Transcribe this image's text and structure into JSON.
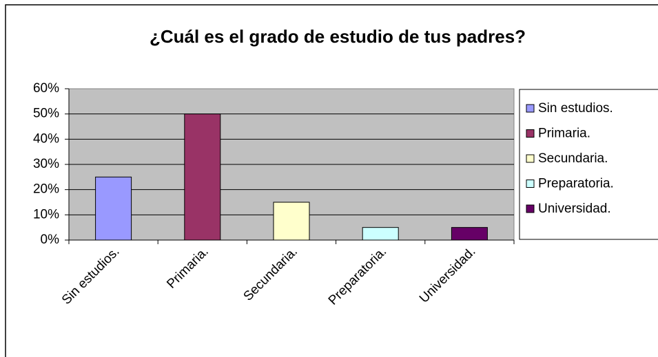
{
  "chart_data": {
    "type": "bar",
    "title": "¿Cuál es el grado de estudio de tus padres?",
    "categories": [
      "Sin estudios.",
      "Primaria.",
      "Secundaria.",
      "Preparatoria.",
      "Universidad."
    ],
    "values": [
      25,
      50,
      15,
      5,
      5
    ],
    "colors": [
      "#9999ff",
      "#993366",
      "#ffffcc",
      "#ccffff",
      "#660066"
    ],
    "ylim": [
      0,
      60
    ],
    "yticks": [
      {
        "value": 0,
        "label": "0%"
      },
      {
        "value": 10,
        "label": "10%"
      },
      {
        "value": 20,
        "label": "20%"
      },
      {
        "value": 30,
        "label": "30%"
      },
      {
        "value": 40,
        "label": "40%"
      },
      {
        "value": 50,
        "label": "50%"
      },
      {
        "value": 60,
        "label": "60%"
      }
    ],
    "grid": true,
    "legend": "right"
  }
}
